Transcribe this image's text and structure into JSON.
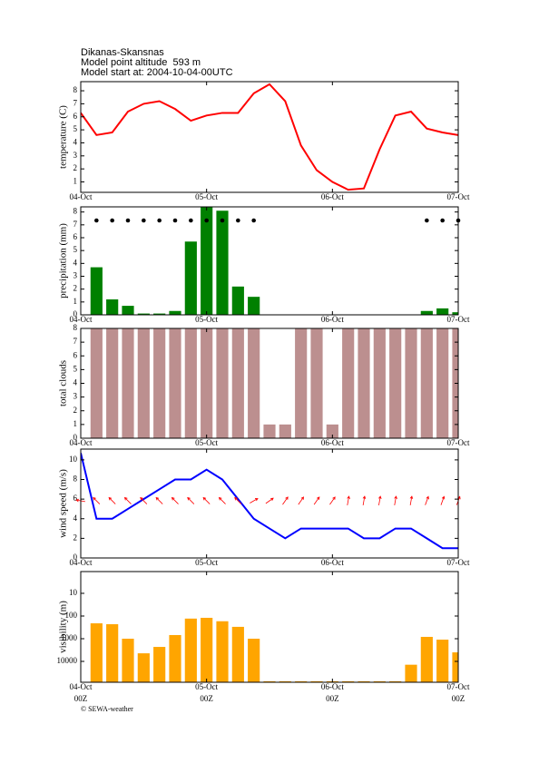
{
  "header": {
    "station": "Dikanas-Skansnas",
    "altitude": "Model point altitude  593 m",
    "model_start": "Model start at: 2004-10-04-00UTC"
  },
  "footer": "© SEWA-weather",
  "chart_data": [
    {
      "type": "line",
      "y_label": "temperature (C)",
      "x": [
        0,
        3,
        6,
        9,
        12,
        15,
        18,
        21,
        24,
        27,
        30,
        33,
        36,
        39,
        42,
        45,
        48,
        51,
        54,
        57,
        60,
        63,
        66,
        69,
        72
      ],
      "series": [
        {
          "color": "#ff0000",
          "values": [
            6.3,
            4.6,
            4.8,
            6.4,
            7.0,
            7.2,
            6.6,
            5.7,
            6.1,
            6.3,
            6.3,
            7.8,
            8.5,
            7.2,
            3.8,
            1.9,
            1.0,
            0.4,
            0.5,
            3.5,
            6.1,
            6.4,
            5.1,
            4.8,
            4.6
          ]
        }
      ],
      "xlim": [
        0,
        72
      ],
      "xticks": [
        {
          "value": 0,
          "label": "04-Oct"
        },
        {
          "value": 24,
          "label": "05-Oct"
        },
        {
          "value": 48,
          "label": "06-Oct"
        },
        {
          "value": 72,
          "label": "07-Oct"
        }
      ],
      "ylim": [
        0.2,
        8.7
      ],
      "yticks": [
        1,
        2,
        3,
        4,
        5,
        6,
        7,
        8
      ]
    },
    {
      "type": "bar",
      "y_label": "precipitation (mm)",
      "x": [
        3,
        6,
        9,
        12,
        15,
        18,
        21,
        24,
        27,
        30,
        33,
        36,
        39,
        42,
        45,
        48,
        51,
        54,
        57,
        60,
        63,
        66,
        69,
        72
      ],
      "series": [
        {
          "color": "#008000",
          "values": [
            3.7,
            1.2,
            0.7,
            0.1,
            0.1,
            0.3,
            5.7,
            8.4,
            8.1,
            2.2,
            1.4,
            0,
            0,
            0,
            0,
            0,
            0,
            0,
            0,
            0,
            0,
            0.3,
            0.5,
            0.2
          ]
        }
      ],
      "symbol_x": [
        3,
        6,
        9,
        12,
        15,
        18,
        21,
        24,
        27,
        30,
        33,
        66,
        69,
        72
      ],
      "symbol_color": "#000000",
      "xlim": [
        0,
        72
      ],
      "xticks": [
        {
          "value": 0,
          "label": "04-Oct"
        },
        {
          "value": 24,
          "label": "05-Oct"
        },
        {
          "value": 48,
          "label": "06-Oct"
        },
        {
          "value": 72,
          "label": "07-Oct"
        }
      ],
      "ylim": [
        0,
        8.4
      ],
      "yticks": [
        0,
        1,
        2,
        3,
        4,
        5,
        6,
        7,
        8
      ]
    },
    {
      "type": "bar",
      "y_label": "total clouds",
      "x": [
        3,
        6,
        9,
        12,
        15,
        18,
        21,
        24,
        27,
        30,
        33,
        36,
        39,
        42,
        45,
        48,
        51,
        54,
        57,
        60,
        63,
        66,
        69,
        72
      ],
      "series": [
        {
          "color": "#bc8f8f",
          "values": [
            8,
            8,
            8,
            8,
            8,
            8,
            8,
            8,
            8,
            8,
            8,
            1,
            1,
            8,
            8,
            1,
            8,
            8,
            8,
            8,
            8,
            8,
            8,
            8
          ]
        }
      ],
      "xlim": [
        0,
        72
      ],
      "xticks": [
        {
          "value": 0,
          "label": "04-Oct"
        },
        {
          "value": 24,
          "label": "05-Oct"
        },
        {
          "value": 48,
          "label": "06-Oct"
        },
        {
          "value": 72,
          "label": "07-Oct"
        }
      ],
      "ylim": [
        0,
        8
      ],
      "yticks": [
        0,
        1,
        2,
        3,
        4,
        5,
        6,
        7,
        8
      ]
    },
    {
      "type": "line",
      "y_label": "wind speed (m/s)",
      "x": [
        0,
        3,
        6,
        9,
        12,
        15,
        18,
        21,
        24,
        27,
        30,
        33,
        36,
        39,
        42,
        45,
        48,
        51,
        54,
        57,
        60,
        63,
        66,
        69,
        72
      ],
      "series": [
        {
          "color": "#0000ff",
          "values": [
            10.7,
            4,
            4,
            5,
            6,
            7,
            8,
            8,
            9,
            8,
            6,
            4,
            3,
            2,
            3,
            3,
            3,
            3,
            2,
            2,
            3,
            3,
            2,
            1,
            1
          ]
        }
      ],
      "wind_direction_deg": [
        100,
        135,
        135,
        135,
        135,
        135,
        135,
        135,
        135,
        135,
        135,
        240,
        235,
        215,
        215,
        215,
        215,
        190,
        190,
        190,
        190,
        190,
        200,
        200,
        200
      ],
      "arrow_color": "#ff0000",
      "xlim": [
        0,
        72
      ],
      "xticks": [
        {
          "value": 0,
          "label": "04-Oct"
        },
        {
          "value": 24,
          "label": "05-Oct"
        },
        {
          "value": 48,
          "label": "06-Oct"
        },
        {
          "value": 72,
          "label": "07-Oct"
        }
      ],
      "ylim": [
        0,
        11.1
      ],
      "yticks": [
        0,
        2,
        4,
        6,
        8,
        10
      ]
    },
    {
      "type": "bar",
      "y_label": "visibility (m)",
      "log_scale": true,
      "x": [
        3,
        6,
        9,
        12,
        15,
        18,
        21,
        24,
        27,
        30,
        33,
        36,
        39,
        42,
        45,
        48,
        51,
        54,
        57,
        60,
        63,
        66,
        69,
        72
      ],
      "series": [
        {
          "color": "#ffa500",
          "values": [
            210,
            230,
            1000,
            4400,
            2300,
            690,
            130,
            120,
            170,
            300,
            1000,
            75000,
            75000,
            75000,
            75000,
            75000,
            75000,
            75000,
            75000,
            75000,
            14000,
            830,
            1100,
            4000
          ]
        }
      ],
      "xlim": [
        0,
        72
      ],
      "xticks": [
        {
          "value": 0,
          "label": "04-Oct"
        },
        {
          "value": 24,
          "label": "05-Oct"
        },
        {
          "value": 48,
          "label": "06-Oct"
        },
        {
          "value": 72,
          "label": "07-Oct"
        }
      ],
      "x_sublabels": [
        "00Z",
        "00Z",
        "00Z",
        "00Z"
      ],
      "ylim": [
        83000,
        1.1
      ],
      "yticks": [
        10,
        100,
        1000,
        10000
      ]
    }
  ]
}
